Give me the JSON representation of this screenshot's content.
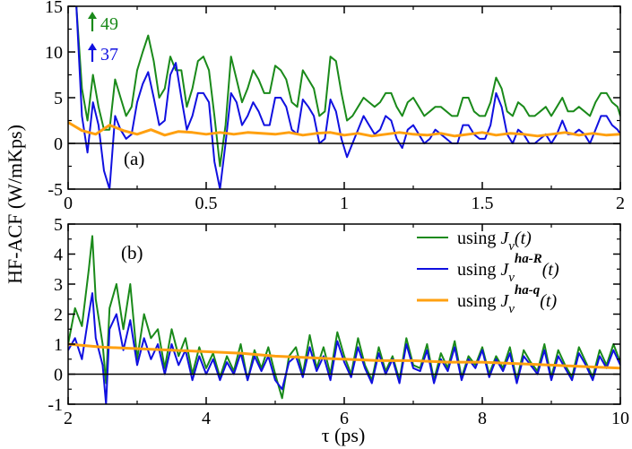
{
  "chart_data": [
    {
      "panel": "(a)",
      "type": "line",
      "xlabel": "",
      "ylabel": "HF-ACF (W/mKps)",
      "xlim": [
        0,
        2
      ],
      "ylim": [
        -5,
        15
      ],
      "xticks": [
        0,
        0.5,
        1,
        1.5,
        2
      ],
      "xtick_labels": [
        "0",
        "0.5",
        "1",
        "1.5",
        "2"
      ],
      "yticks": [
        -5,
        0,
        5,
        10,
        15
      ],
      "ytick_labels": [
        "-5",
        "0",
        "5",
        "10",
        "15"
      ],
      "zero_line": true,
      "annotations": [
        {
          "text": "49",
          "color": "#1a8a1a"
        },
        {
          "text": "37",
          "color": "#1010e0"
        }
      ],
      "series": [
        {
          "name": "using J_v(t)",
          "color": "#1a8a1a",
          "x": [
            0.03,
            0.05,
            0.07,
            0.09,
            0.11,
            0.13,
            0.15,
            0.17,
            0.19,
            0.21,
            0.23,
            0.25,
            0.27,
            0.29,
            0.31,
            0.33,
            0.35,
            0.37,
            0.39,
            0.41,
            0.43,
            0.45,
            0.47,
            0.49,
            0.51,
            0.53,
            0.55,
            0.57,
            0.59,
            0.61,
            0.63,
            0.65,
            0.67,
            0.69,
            0.71,
            0.73,
            0.75,
            0.77,
            0.79,
            0.81,
            0.83,
            0.85,
            0.87,
            0.89,
            0.91,
            0.93,
            0.95,
            0.97,
            0.99,
            1.01,
            1.03,
            1.05,
            1.07,
            1.09,
            1.11,
            1.13,
            1.15,
            1.17,
            1.19,
            1.21,
            1.23,
            1.25,
            1.27,
            1.29,
            1.31,
            1.33,
            1.35,
            1.37,
            1.39,
            1.41,
            1.43,
            1.45,
            1.47,
            1.49,
            1.51,
            1.53,
            1.55,
            1.57,
            1.59,
            1.61,
            1.63,
            1.65,
            1.67,
            1.69,
            1.71,
            1.73,
            1.75,
            1.77,
            1.79,
            1.81,
            1.83,
            1.85,
            1.87,
            1.89,
            1.91,
            1.93,
            1.95,
            1.97,
            1.99,
            2.0
          ],
          "y": [
            15,
            6,
            2.5,
            7.5,
            4,
            1.5,
            1.5,
            7,
            5,
            3,
            4,
            8,
            10,
            11.8,
            9,
            5,
            6,
            9.5,
            8,
            8,
            4,
            6,
            9,
            9.5,
            8,
            3,
            -2.5,
            2,
            9.5,
            7,
            4.5,
            6,
            8,
            7,
            5.5,
            5.5,
            8.5,
            8,
            7,
            4.5,
            4,
            8,
            7,
            6,
            3,
            3.5,
            9.5,
            9,
            5.5,
            2.5,
            3,
            4,
            5,
            4.5,
            4,
            4.5,
            5.5,
            5.5,
            4,
            3,
            4.5,
            5,
            4,
            3,
            3.5,
            4,
            4,
            3.5,
            3,
            3,
            5,
            5,
            3.5,
            3,
            3,
            4.5,
            7.2,
            6,
            3.5,
            3,
            4.5,
            4,
            3,
            3,
            3.5,
            4,
            3,
            4,
            5,
            3.5,
            3.5,
            4,
            3.5,
            3,
            4.5,
            5.5,
            5.5,
            4.5,
            4,
            3
          ]
        },
        {
          "name": "using J_v^{ha-R}(t)",
          "color": "#1010e0",
          "x": [
            0.03,
            0.05,
            0.07,
            0.09,
            0.11,
            0.13,
            0.15,
            0.17,
            0.19,
            0.21,
            0.23,
            0.25,
            0.27,
            0.29,
            0.31,
            0.33,
            0.35,
            0.37,
            0.39,
            0.41,
            0.43,
            0.45,
            0.47,
            0.49,
            0.51,
            0.53,
            0.55,
            0.57,
            0.59,
            0.61,
            0.63,
            0.65,
            0.67,
            0.69,
            0.71,
            0.73,
            0.75,
            0.77,
            0.79,
            0.81,
            0.83,
            0.85,
            0.87,
            0.89,
            0.91,
            0.93,
            0.95,
            0.97,
            0.99,
            1.01,
            1.03,
            1.05,
            1.07,
            1.09,
            1.11,
            1.13,
            1.15,
            1.17,
            1.19,
            1.21,
            1.23,
            1.25,
            1.27,
            1.29,
            1.31,
            1.33,
            1.35,
            1.37,
            1.39,
            1.41,
            1.43,
            1.45,
            1.47,
            1.49,
            1.51,
            1.53,
            1.55,
            1.57,
            1.59,
            1.61,
            1.63,
            1.65,
            1.67,
            1.69,
            1.71,
            1.73,
            1.75,
            1.77,
            1.79,
            1.81,
            1.83,
            1.85,
            1.87,
            1.89,
            1.91,
            1.93,
            1.95,
            1.97,
            1.99,
            2.0
          ],
          "y": [
            15,
            3,
            -1,
            4.5,
            2,
            -3,
            -5,
            3,
            1.5,
            0.5,
            1,
            4.5,
            6.5,
            7.8,
            5,
            2,
            2.5,
            7.5,
            8.8,
            5,
            1.5,
            3,
            5.5,
            5.5,
            4.5,
            -2,
            -5,
            0,
            5.5,
            4.5,
            2,
            3,
            4.5,
            3.5,
            2,
            2,
            5,
            5,
            4,
            1.5,
            1,
            4.8,
            4,
            3,
            0,
            0.5,
            4.8,
            3.5,
            0.5,
            -1.5,
            0,
            1.5,
            3,
            2,
            1,
            1.5,
            3,
            2.5,
            0.5,
            -0.5,
            1.5,
            2,
            1,
            0,
            0.5,
            1.5,
            1,
            0.5,
            0,
            0,
            2,
            2,
            1,
            0.5,
            0.5,
            2,
            5.5,
            4,
            1,
            0,
            1.5,
            1,
            0,
            0,
            0.5,
            1,
            0,
            1,
            2.5,
            1,
            1,
            1.5,
            1,
            0,
            1.5,
            3,
            3,
            2,
            1.5,
            1
          ]
        },
        {
          "name": "using J_v^{ha-q}(t)",
          "color": "#ffa010",
          "x": [
            0,
            0.05,
            0.1,
            0.15,
            0.2,
            0.25,
            0.3,
            0.35,
            0.4,
            0.45,
            0.5,
            0.55,
            0.6,
            0.65,
            0.7,
            0.75,
            0.8,
            0.85,
            0.9,
            0.95,
            1.0,
            1.05,
            1.1,
            1.15,
            1.2,
            1.25,
            1.3,
            1.35,
            1.4,
            1.45,
            1.5,
            1.55,
            1.6,
            1.65,
            1.7,
            1.75,
            1.8,
            1.85,
            1.9,
            1.95,
            2.0
          ],
          "y": [
            2.3,
            1.4,
            1.0,
            2.0,
            1.4,
            1.0,
            1.5,
            0.9,
            1.3,
            1.2,
            1.0,
            1.2,
            1.0,
            1.2,
            1.1,
            1.0,
            1.2,
            0.9,
            1.1,
            1.2,
            0.9,
            1.1,
            0.8,
            1.0,
            1.2,
            1.0,
            0.9,
            1.1,
            0.8,
            1.0,
            1.2,
            0.9,
            1.1,
            1.0,
            0.8,
            1.0,
            1.2,
            0.9,
            1.1,
            0.9,
            1.0
          ]
        }
      ]
    },
    {
      "panel": "(b)",
      "type": "line",
      "xlabel": "τ (ps)",
      "ylabel": "HF-ACF (W/mKps)",
      "xlim": [
        2,
        10
      ],
      "ylim": [
        -1,
        5
      ],
      "xticks": [
        2,
        4,
        6,
        8,
        10
      ],
      "xtick_labels": [
        "2",
        "4",
        "6",
        "8",
        "10"
      ],
      "yticks": [
        -1,
        0,
        1,
        2,
        3,
        4,
        5
      ],
      "ytick_labels": [
        "-1",
        "0",
        "1",
        "2",
        "3",
        "4",
        "5"
      ],
      "zero_line": true,
      "legend": {
        "placement": "top-right",
        "entries": [
          {
            "prefix": "using ",
            "symbol": "J",
            "subscript": "v",
            "superscript": "",
            "suffix": "(t)",
            "color": "#1a8a1a"
          },
          {
            "prefix": "using ",
            "symbol": "J",
            "subscript": "v",
            "superscript": "ha-R",
            "suffix": "(t)",
            "color": "#1010e0"
          },
          {
            "prefix": "using ",
            "symbol": "J",
            "subscript": "v",
            "superscript": "ha-q",
            "suffix": "(t)",
            "color": "#ffa010"
          }
        ]
      },
      "series": [
        {
          "name": "using J_v(t)",
          "color": "#1a8a1a",
          "x": [
            2.0,
            2.1,
            2.2,
            2.3,
            2.35,
            2.4,
            2.5,
            2.55,
            2.6,
            2.7,
            2.8,
            2.9,
            3.0,
            3.1,
            3.2,
            3.3,
            3.4,
            3.5,
            3.6,
            3.7,
            3.8,
            3.9,
            4.0,
            4.1,
            4.2,
            4.3,
            4.4,
            4.5,
            4.6,
            4.7,
            4.8,
            4.9,
            5.0,
            5.1,
            5.2,
            5.3,
            5.4,
            5.5,
            5.6,
            5.7,
            5.8,
            5.9,
            6.0,
            6.1,
            6.2,
            6.3,
            6.4,
            6.5,
            6.6,
            6.7,
            6.8,
            6.9,
            7.0,
            7.1,
            7.2,
            7.3,
            7.4,
            7.5,
            7.6,
            7.7,
            7.8,
            7.9,
            8.0,
            8.1,
            8.2,
            8.3,
            8.4,
            8.5,
            8.6,
            8.7,
            8.8,
            8.9,
            9.0,
            9.1,
            9.2,
            9.3,
            9.4,
            9.5,
            9.6,
            9.7,
            9.8,
            9.9,
            10.0
          ],
          "y": [
            1.0,
            2.2,
            1.6,
            3.5,
            4.6,
            2.5,
            1.0,
            -0.3,
            2.2,
            3.0,
            1.5,
            3.0,
            0.5,
            2.0,
            1.2,
            1.5,
            0.2,
            1.5,
            0.6,
            1.2,
            0.0,
            0.9,
            0.2,
            0.7,
            -0.1,
            0.6,
            0.1,
            1.0,
            -0.2,
            0.8,
            0.2,
            0.9,
            0.0,
            -0.8,
            0.6,
            0.9,
            0.0,
            1.3,
            0.2,
            0.9,
            0.0,
            1.4,
            0.6,
            0.0,
            1.2,
            0.3,
            -0.2,
            0.9,
            0.1,
            0.6,
            -0.2,
            1.2,
            0.3,
            0.2,
            1.0,
            -0.2,
            0.7,
            0.2,
            1.1,
            -0.1,
            0.6,
            0.3,
            0.9,
            0.0,
            0.6,
            0.2,
            0.9,
            -0.2,
            0.8,
            0.4,
            0.1,
            1.0,
            -0.1,
            0.8,
            0.3,
            -0.1,
            0.9,
            0.4,
            -0.1,
            0.8,
            0.3,
            1.0,
            0.4
          ]
        },
        {
          "name": "using J_v^{ha-R}(t)",
          "color": "#1010e0",
          "x": [
            2.0,
            2.1,
            2.2,
            2.3,
            2.35,
            2.4,
            2.5,
            2.55,
            2.6,
            2.7,
            2.8,
            2.9,
            3.0,
            3.1,
            3.2,
            3.3,
            3.4,
            3.5,
            3.6,
            3.7,
            3.8,
            3.9,
            4.0,
            4.1,
            4.2,
            4.3,
            4.4,
            4.5,
            4.6,
            4.7,
            4.8,
            4.9,
            5.0,
            5.1,
            5.2,
            5.3,
            5.4,
            5.5,
            5.6,
            5.7,
            5.8,
            5.9,
            6.0,
            6.1,
            6.2,
            6.3,
            6.4,
            6.5,
            6.6,
            6.7,
            6.8,
            6.9,
            7.0,
            7.1,
            7.2,
            7.3,
            7.4,
            7.5,
            7.6,
            7.7,
            7.8,
            7.9,
            8.0,
            8.1,
            8.2,
            8.3,
            8.4,
            8.5,
            8.6,
            8.7,
            8.8,
            8.9,
            9.0,
            9.1,
            9.2,
            9.3,
            9.4,
            9.5,
            9.6,
            9.7,
            9.8,
            9.9,
            10.0
          ],
          "y": [
            0.8,
            1.2,
            0.5,
            2.0,
            2.7,
            1.2,
            0.3,
            -1.0,
            1.5,
            2.0,
            0.8,
            1.8,
            0.3,
            1.2,
            0.5,
            1.0,
            0.0,
            1.0,
            0.3,
            0.8,
            -0.2,
            0.6,
            0.0,
            0.5,
            -0.2,
            0.4,
            0.0,
            0.7,
            -0.2,
            0.6,
            0.1,
            0.6,
            -0.2,
            -0.5,
            0.4,
            0.6,
            -0.1,
            0.9,
            0.1,
            0.6,
            -0.2,
            1.1,
            0.4,
            -0.1,
            0.9,
            0.2,
            -0.3,
            0.7,
            0.0,
            0.5,
            -0.3,
            1.0,
            0.2,
            0.1,
            0.8,
            -0.3,
            0.5,
            0.1,
            0.9,
            -0.2,
            0.5,
            0.2,
            0.8,
            -0.1,
            0.5,
            0.1,
            0.7,
            -0.3,
            0.6,
            0.3,
            0.0,
            0.8,
            -0.2,
            0.6,
            0.2,
            -0.2,
            0.7,
            0.3,
            -0.2,
            0.6,
            0.2,
            0.8,
            0.3
          ]
        },
        {
          "name": "using J_v^{ha-q}(t)",
          "color": "#ffa010",
          "x": [
            2.0,
            2.5,
            3.0,
            3.5,
            4.0,
            4.5,
            5.0,
            5.5,
            6.0,
            6.5,
            7.0,
            7.5,
            8.0,
            8.5,
            9.0,
            9.5,
            10.0
          ],
          "y": [
            1.0,
            0.9,
            0.85,
            0.8,
            0.75,
            0.7,
            0.6,
            0.55,
            0.5,
            0.45,
            0.45,
            0.4,
            0.4,
            0.35,
            0.3,
            0.25,
            0.2
          ]
        }
      ]
    }
  ]
}
